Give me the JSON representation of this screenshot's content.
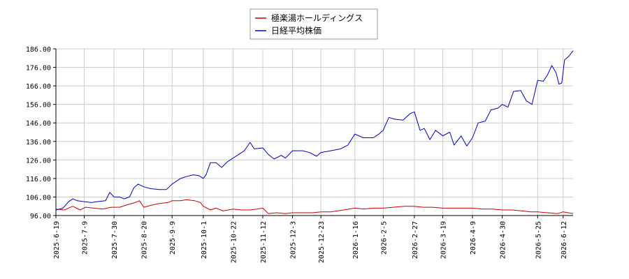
{
  "chart_data": {
    "type": "line",
    "title": "",
    "xlabel": "",
    "ylabel": "",
    "ylim": [
      96.0,
      186.0
    ],
    "yticks": [
      "96.00",
      "106.00",
      "116.00",
      "126.00",
      "136.00",
      "146.00",
      "156.00",
      "166.00",
      "176.00",
      "186.00"
    ],
    "x_start": "2025-06-19",
    "x_end": "2026-06-19",
    "xticks": [
      "2025-6-19",
      "2025-7-9",
      "2025-7-30",
      "2025-8-20",
      "2025-9-9",
      "2025-10-1",
      "2025-10-22",
      "2025-11-12",
      "2025-12-3",
      "2025-12-23",
      "2026-1-16",
      "2026-2-5",
      "2026-2-27",
      "2026-3-19",
      "2026-4-9",
      "2026-4-30",
      "2026-5-25",
      "2026-6-12"
    ],
    "xtick_dates": [
      "2025-06-19",
      "2025-07-09",
      "2025-07-30",
      "2025-08-20",
      "2025-09-09",
      "2025-10-01",
      "2025-10-22",
      "2025-11-12",
      "2025-12-03",
      "2025-12-23",
      "2026-01-16",
      "2026-02-05",
      "2026-02-27",
      "2026-03-19",
      "2026-04-09",
      "2026-04-30",
      "2026-05-25",
      "2026-06-12"
    ],
    "grid": true,
    "legend_position": "top-center",
    "series": [
      {
        "name": "極楽湯ホールディングス",
        "color": "#cc0000",
        "points": [
          [
            "2025-06-19",
            99.5
          ],
          [
            "2025-06-25",
            99.0
          ],
          [
            "2025-07-01",
            101.0
          ],
          [
            "2025-07-06",
            99.0
          ],
          [
            "2025-07-10",
            100.5
          ],
          [
            "2025-07-16",
            100.0
          ],
          [
            "2025-07-22",
            99.5
          ],
          [
            "2025-07-28",
            100.5
          ],
          [
            "2025-08-03",
            100.5
          ],
          [
            "2025-08-09",
            102.0
          ],
          [
            "2025-08-14",
            103.0
          ],
          [
            "2025-08-17",
            104.0
          ],
          [
            "2025-08-20",
            100.5
          ],
          [
            "2025-08-25",
            101.5
          ],
          [
            "2025-08-31",
            102.5
          ],
          [
            "2025-09-06",
            103.0
          ],
          [
            "2025-09-09",
            104.0
          ],
          [
            "2025-09-15",
            104.0
          ],
          [
            "2025-09-19",
            104.5
          ],
          [
            "2025-09-25",
            104.0
          ],
          [
            "2025-09-29",
            103.0
          ],
          [
            "2025-10-01",
            101.0
          ],
          [
            "2025-10-06",
            99.0
          ],
          [
            "2025-10-10",
            100.0
          ],
          [
            "2025-10-15",
            98.5
          ],
          [
            "2025-10-22",
            99.5
          ],
          [
            "2025-10-28",
            99.0
          ],
          [
            "2025-11-03",
            99.0
          ],
          [
            "2025-11-08",
            99.5
          ],
          [
            "2025-11-12",
            100.0
          ],
          [
            "2025-11-16",
            97.0
          ],
          [
            "2025-11-22",
            97.5
          ],
          [
            "2025-11-28",
            97.0
          ],
          [
            "2025-12-03",
            97.5
          ],
          [
            "2025-12-10",
            97.5
          ],
          [
            "2025-12-17",
            97.5
          ],
          [
            "2025-12-23",
            98.0
          ],
          [
            "2025-12-30",
            98.0
          ],
          [
            "2026-01-08",
            99.0
          ],
          [
            "2026-01-16",
            100.0
          ],
          [
            "2026-01-22",
            99.5
          ],
          [
            "2026-01-29",
            100.0
          ],
          [
            "2026-02-05",
            100.0
          ],
          [
            "2026-02-12",
            100.5
          ],
          [
            "2026-02-20",
            101.0
          ],
          [
            "2026-02-27",
            101.0
          ],
          [
            "2026-03-05",
            100.5
          ],
          [
            "2026-03-12",
            100.5
          ],
          [
            "2026-03-19",
            100.0
          ],
          [
            "2026-03-25",
            100.0
          ],
          [
            "2026-04-01",
            100.0
          ],
          [
            "2026-04-09",
            100.0
          ],
          [
            "2026-04-16",
            99.5
          ],
          [
            "2026-04-23",
            99.5
          ],
          [
            "2026-04-30",
            99.0
          ],
          [
            "2026-05-07",
            99.0
          ],
          [
            "2026-05-14",
            98.5
          ],
          [
            "2026-05-20",
            98.0
          ],
          [
            "2026-05-25",
            98.0
          ],
          [
            "2026-06-01",
            97.5
          ],
          [
            "2026-06-08",
            97.0
          ],
          [
            "2026-06-12",
            98.0
          ],
          [
            "2026-06-19",
            97.0
          ]
        ]
      },
      {
        "name": "日経平均株価",
        "color": "#0000cc",
        "points": [
          [
            "2025-06-19",
            99.0
          ],
          [
            "2025-06-24",
            100.0
          ],
          [
            "2025-06-28",
            103.5
          ],
          [
            "2025-07-01",
            105.0
          ],
          [
            "2025-07-04",
            104.0
          ],
          [
            "2025-07-09",
            103.5
          ],
          [
            "2025-07-14",
            103.0
          ],
          [
            "2025-07-18",
            103.5
          ],
          [
            "2025-07-24",
            104.0
          ],
          [
            "2025-07-27",
            108.5
          ],
          [
            "2025-07-30",
            106.0
          ],
          [
            "2025-08-03",
            106.0
          ],
          [
            "2025-08-06",
            105.0
          ],
          [
            "2025-08-10",
            106.0
          ],
          [
            "2025-08-13",
            111.0
          ],
          [
            "2025-08-16",
            113.0
          ],
          [
            "2025-08-20",
            111.5
          ],
          [
            "2025-08-25",
            110.5
          ],
          [
            "2025-08-31",
            110.0
          ],
          [
            "2025-09-05",
            110.0
          ],
          [
            "2025-09-09",
            113.0
          ],
          [
            "2025-09-15",
            116.0
          ],
          [
            "2025-09-19",
            117.0
          ],
          [
            "2025-09-24",
            118.0
          ],
          [
            "2025-09-28",
            117.5
          ],
          [
            "2025-10-01",
            116.0
          ],
          [
            "2025-10-03",
            118.0
          ],
          [
            "2025-10-06",
            124.5
          ],
          [
            "2025-10-10",
            124.5
          ],
          [
            "2025-10-14",
            122.0
          ],
          [
            "2025-10-18",
            125.0
          ],
          [
            "2025-10-22",
            127.0
          ],
          [
            "2025-10-26",
            129.0
          ],
          [
            "2025-10-30",
            131.0
          ],
          [
            "2025-11-03",
            135.5
          ],
          [
            "2025-11-06",
            132.0
          ],
          [
            "2025-11-12",
            132.5
          ],
          [
            "2025-11-16",
            129.0
          ],
          [
            "2025-11-20",
            126.5
          ],
          [
            "2025-11-25",
            128.5
          ],
          [
            "2025-11-28",
            127.0
          ],
          [
            "2025-12-03",
            131.0
          ],
          [
            "2025-12-10",
            131.0
          ],
          [
            "2025-12-15",
            130.0
          ],
          [
            "2025-12-20",
            128.0
          ],
          [
            "2025-12-23",
            130.0
          ],
          [
            "2025-12-30",
            131.0
          ],
          [
            "2026-01-06",
            132.0
          ],
          [
            "2026-01-11",
            134.0
          ],
          [
            "2026-01-16",
            140.0
          ],
          [
            "2026-01-22",
            138.0
          ],
          [
            "2026-01-29",
            138.0
          ],
          [
            "2026-02-02",
            140.0
          ],
          [
            "2026-02-05",
            142.0
          ],
          [
            "2026-02-09",
            149.0
          ],
          [
            "2026-02-13",
            148.0
          ],
          [
            "2026-02-19",
            147.5
          ],
          [
            "2026-02-24",
            151.0
          ],
          [
            "2026-02-27",
            152.0
          ],
          [
            "2026-03-03",
            142.0
          ],
          [
            "2026-03-06",
            143.0
          ],
          [
            "2026-03-10",
            137.0
          ],
          [
            "2026-03-14",
            142.0
          ],
          [
            "2026-03-19",
            139.0
          ],
          [
            "2026-03-24",
            141.0
          ],
          [
            "2026-03-27",
            134.0
          ],
          [
            "2026-04-01",
            139.0
          ],
          [
            "2026-04-05",
            133.5
          ],
          [
            "2026-04-09",
            138.0
          ],
          [
            "2026-04-13",
            146.0
          ],
          [
            "2026-04-18",
            147.0
          ],
          [
            "2026-04-22",
            153.0
          ],
          [
            "2026-04-27",
            154.0
          ],
          [
            "2026-04-30",
            156.0
          ],
          [
            "2026-05-04",
            154.5
          ],
          [
            "2026-05-08",
            163.0
          ],
          [
            "2026-05-13",
            163.5
          ],
          [
            "2026-05-17",
            158.0
          ],
          [
            "2026-05-21",
            156.0
          ],
          [
            "2026-05-25",
            169.0
          ],
          [
            "2026-05-29",
            168.5
          ],
          [
            "2026-06-01",
            172.0
          ],
          [
            "2026-06-04",
            177.0
          ],
          [
            "2026-06-07",
            173.0
          ],
          [
            "2026-06-09",
            167.0
          ],
          [
            "2026-06-11",
            167.5
          ],
          [
            "2026-06-13",
            180.0
          ],
          [
            "2026-06-16",
            182.0
          ],
          [
            "2026-06-19",
            185.0
          ]
        ]
      }
    ]
  }
}
